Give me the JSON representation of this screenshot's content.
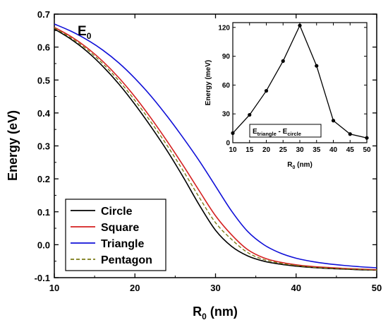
{
  "chart_data": [
    {
      "type": "line",
      "annotation": {
        "main": "E",
        "sub": "0"
      },
      "xlabel": {
        "main": "R",
        "sub": "0",
        "suffix": " (nm)"
      },
      "ylabel": "Energy (eV)",
      "xlim": [
        10,
        50
      ],
      "ylim": [
        -0.1,
        0.7
      ],
      "xticks": [
        "10",
        "20",
        "30",
        "40",
        "50"
      ],
      "yticks": [
        "-0.1",
        "0.0",
        "0.1",
        "0.2",
        "0.3",
        "0.4",
        "0.5",
        "0.6",
        "0.7"
      ],
      "grid": false,
      "legend_position": "bottom-left",
      "series": [
        {
          "name": "Circle",
          "color": "#000000",
          "dash": "solid",
          "x": [
            10,
            12,
            14,
            16,
            18,
            20,
            22,
            24,
            26,
            28,
            30,
            32,
            34,
            36,
            38,
            40,
            42,
            44,
            46,
            48,
            50
          ],
          "y": [
            0.655,
            0.625,
            0.588,
            0.542,
            0.488,
            0.426,
            0.358,
            0.285,
            0.205,
            0.12,
            0.044,
            -0.005,
            -0.034,
            -0.05,
            -0.059,
            -0.065,
            -0.069,
            -0.072,
            -0.074,
            -0.076,
            -0.077
          ]
        },
        {
          "name": "Square",
          "color": "#d42020",
          "dash": "solid",
          "x": [
            10,
            12,
            14,
            16,
            18,
            20,
            22,
            24,
            26,
            28,
            30,
            32,
            34,
            36,
            38,
            40,
            42,
            44,
            46,
            48,
            50
          ],
          "y": [
            0.66,
            0.633,
            0.599,
            0.557,
            0.507,
            0.449,
            0.384,
            0.314,
            0.24,
            0.163,
            0.088,
            0.03,
            -0.015,
            -0.04,
            -0.053,
            -0.061,
            -0.066,
            -0.069,
            -0.072,
            -0.074,
            -0.076
          ]
        },
        {
          "name": "Triangle",
          "color": "#1010d8",
          "dash": "solid",
          "x": [
            10,
            12,
            14,
            16,
            18,
            20,
            22,
            24,
            26,
            28,
            30,
            32,
            34,
            36,
            38,
            40,
            42,
            44,
            46,
            48,
            50
          ],
          "y": [
            0.67,
            0.649,
            0.623,
            0.591,
            0.552,
            0.505,
            0.451,
            0.39,
            0.324,
            0.254,
            0.178,
            0.102,
            0.04,
            0.0,
            -0.025,
            -0.041,
            -0.051,
            -0.058,
            -0.063,
            -0.067,
            -0.07
          ]
        },
        {
          "name": "Pentagon",
          "color": "#7a7a16",
          "dash": "dashed",
          "x": [
            10,
            12,
            14,
            16,
            18,
            20,
            22,
            24,
            26,
            28,
            30,
            32,
            34,
            36,
            38,
            40,
            42,
            44,
            46,
            48,
            50
          ],
          "y": [
            0.658,
            0.629,
            0.594,
            0.55,
            0.498,
            0.438,
            0.372,
            0.301,
            0.224,
            0.143,
            0.067,
            0.016,
            -0.024,
            -0.045,
            -0.056,
            -0.063,
            -0.068,
            -0.071,
            -0.073,
            -0.075,
            -0.077
          ]
        }
      ]
    },
    {
      "type": "line",
      "inset": true,
      "xlabel": {
        "main": "R",
        "sub": "0",
        "suffix": " (nm)"
      },
      "ylabel": "Energy (meV)",
      "xlim": [
        10,
        50
      ],
      "ylim": [
        0,
        125
      ],
      "xticks": [
        "10",
        "15",
        "20",
        "25",
        "30",
        "35",
        "40",
        "45",
        "50"
      ],
      "yticks": [
        "0",
        "30",
        "60",
        "90",
        "120"
      ],
      "annotation": {
        "a": "E",
        "a_sub": "triangle",
        "sep": " - ",
        "b": "E",
        "b_sub": "circle"
      },
      "series": [
        {
          "color": "#000000",
          "marker": "circle",
          "x": [
            10,
            15,
            20,
            25,
            30,
            35,
            40,
            45,
            50
          ],
          "y": [
            10,
            29,
            54,
            85,
            122,
            80,
            23,
            9,
            5
          ]
        }
      ]
    }
  ]
}
